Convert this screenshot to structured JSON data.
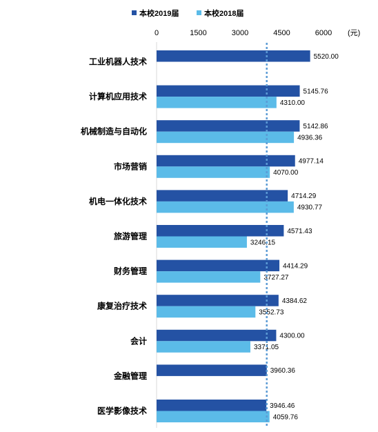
{
  "chart_data": {
    "type": "bar",
    "orientation": "horizontal",
    "x_ticks": [
      "0",
      "1500",
      "3000",
      "4500",
      "6000"
    ],
    "x_unit": "(元)",
    "xlim": [
      0,
      6000
    ],
    "axis_position": "top",
    "legend_position": "top",
    "categories": [
      "工业机器人技术",
      "计算机应用技术",
      "机械制造与自动化",
      "市场营销",
      "机电一体化技术",
      "旅游管理",
      "财务管理",
      "康复治疗技术",
      "会计",
      "金融管理",
      "医学影像技术"
    ],
    "series": [
      {
        "name": "本校2019届",
        "color": "#2452a4",
        "values": [
          5520.0,
          5145.76,
          5142.86,
          4977.14,
          4714.29,
          4571.43,
          4414.29,
          4384.62,
          4300.0,
          3960.36,
          3946.46
        ],
        "labels": [
          "5520.00",
          "5145.76",
          "5142.86",
          "4977.14",
          "4714.29",
          "4571.43",
          "4414.29",
          "4384.62",
          "4300.00",
          "3960.36",
          "3946.46"
        ]
      },
      {
        "name": "本校2018届",
        "color": "#5bbbe8",
        "values": [
          null,
          4310.0,
          4936.36,
          4070.0,
          4930.77,
          3246.15,
          3727.27,
          3552.73,
          3371.05,
          null,
          4059.76
        ],
        "labels": [
          "",
          "4310.00",
          "4936.36",
          "4070.00",
          "4930.77",
          "3246.15",
          "3727.27",
          "3552.73",
          "3371.05",
          "",
          "4059.76"
        ]
      }
    ],
    "reference_line": {
      "value": 3960,
      "style": "dashed",
      "color": "#5b9bd5"
    }
  }
}
